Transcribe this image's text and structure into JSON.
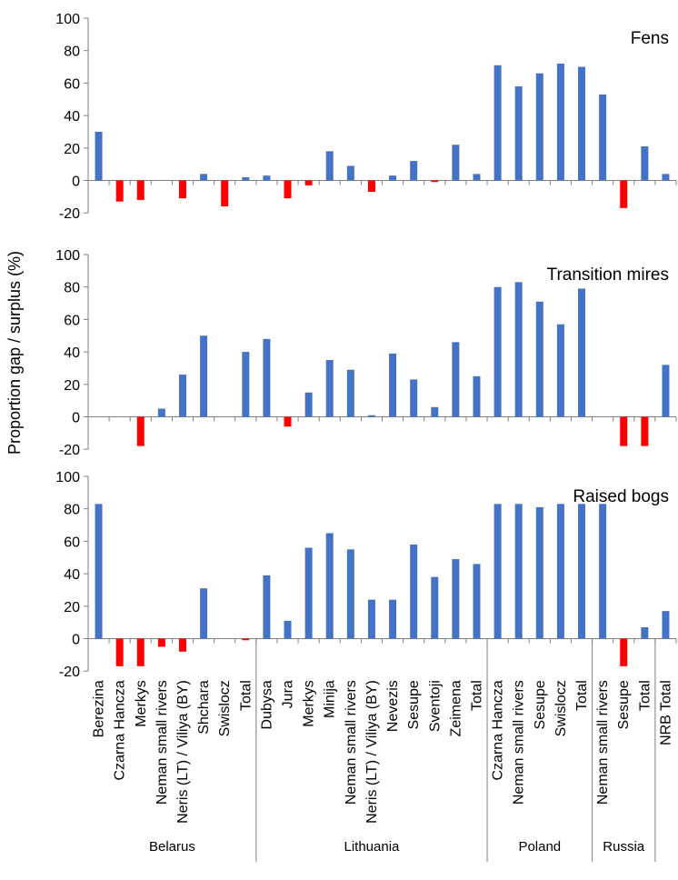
{
  "figure": {
    "ylabel": "Proportion gap / surplus (%)",
    "colors": {
      "positive": "#4472C4",
      "negative": "#FF0000",
      "axis": "#7f7f7f"
    }
  },
  "chart_data": [
    {
      "type": "bar",
      "title": "Fens",
      "ylim": [
        -20,
        100
      ],
      "yticks": [
        -20,
        0,
        20,
        40,
        60,
        80,
        100
      ],
      "categories": [
        "Berezina",
        "Czarna Hancza",
        "Merkys",
        "Neman small rivers",
        "Neris (LT) / Viliya (BY)",
        "Shchara",
        "Swislocz",
        "Total",
        "Dubysa",
        "Jura",
        "Merkys",
        "Minija",
        "Neman small rivers",
        "Neris (LT) / Viliya (BY)",
        "Nevezis",
        "Sesupe",
        "Sventoji",
        "Zeimena",
        "Total",
        "Czarna Hancza",
        "Neman small rivers",
        "Sesupe",
        "Swislocz",
        "Total",
        "Neman small rivers",
        "Sesupe",
        "Total",
        "NRB Total"
      ],
      "values": [
        30,
        -13,
        -12,
        0,
        -11,
        4,
        -16,
        2,
        3,
        -11,
        -3,
        18,
        9,
        -7,
        3,
        12,
        -1,
        22,
        4,
        71,
        58,
        66,
        72,
        70,
        53,
        -17,
        21,
        4
      ]
    },
    {
      "type": "bar",
      "title": "Transition mires",
      "ylim": [
        -20,
        100
      ],
      "yticks": [
        -20,
        0,
        20,
        40,
        60,
        80,
        100
      ],
      "categories": [
        "Berezina",
        "Czarna Hancza",
        "Merkys",
        "Neman small rivers",
        "Neris (LT) / Viliya (BY)",
        "Shchara",
        "Swislocz",
        "Total",
        "Dubysa",
        "Jura",
        "Merkys",
        "Minija",
        "Neman small rivers",
        "Neris (LT) / Viliya (BY)",
        "Nevezis",
        "Sesupe",
        "Sventoji",
        "Zeimena",
        "Total",
        "Czarna Hancza",
        "Neman small rivers",
        "Sesupe",
        "Swislocz",
        "Total",
        "Neman small rivers",
        "Sesupe",
        "Total",
        "NRB Total"
      ],
      "values": [
        0,
        0,
        -18,
        5,
        26,
        50,
        0,
        40,
        48,
        -6,
        15,
        35,
        29,
        1,
        39,
        23,
        6,
        46,
        25,
        80,
        83,
        71,
        57,
        79,
        0,
        -18,
        -18,
        32
      ]
    },
    {
      "type": "bar",
      "title": "Raised bogs",
      "ylim": [
        -20,
        100
      ],
      "yticks": [
        -20,
        0,
        20,
        40,
        60,
        80,
        100
      ],
      "categories": [
        "Berezina",
        "Czarna Hancza",
        "Merkys",
        "Neman small rivers",
        "Neris (LT) / Viliya (BY)",
        "Shchara",
        "Swislocz",
        "Total",
        "Dubysa",
        "Jura",
        "Merkys",
        "Minija",
        "Neman small rivers",
        "Neris (LT) / Viliya (BY)",
        "Nevezis",
        "Sesupe",
        "Sventoji",
        "Zeimena",
        "Total",
        "Czarna Hancza",
        "Neman small rivers",
        "Sesupe",
        "Swislocz",
        "Total",
        "Neman small rivers",
        "Sesupe",
        "Total",
        "NRB Total"
      ],
      "values": [
        83,
        -17,
        -17,
        -5,
        -8,
        31,
        0,
        -1,
        39,
        11,
        56,
        65,
        55,
        24,
        24,
        58,
        38,
        49,
        46,
        83,
        83,
        81,
        83,
        83,
        83,
        -17,
        7,
        17
      ]
    }
  ],
  "groups": [
    {
      "label": "Belarus",
      "count": 8
    },
    {
      "label": "Lithuania",
      "count": 11
    },
    {
      "label": "Poland",
      "count": 5
    },
    {
      "label": "Russia",
      "count": 3
    },
    {
      "label": "",
      "count": 1
    }
  ]
}
